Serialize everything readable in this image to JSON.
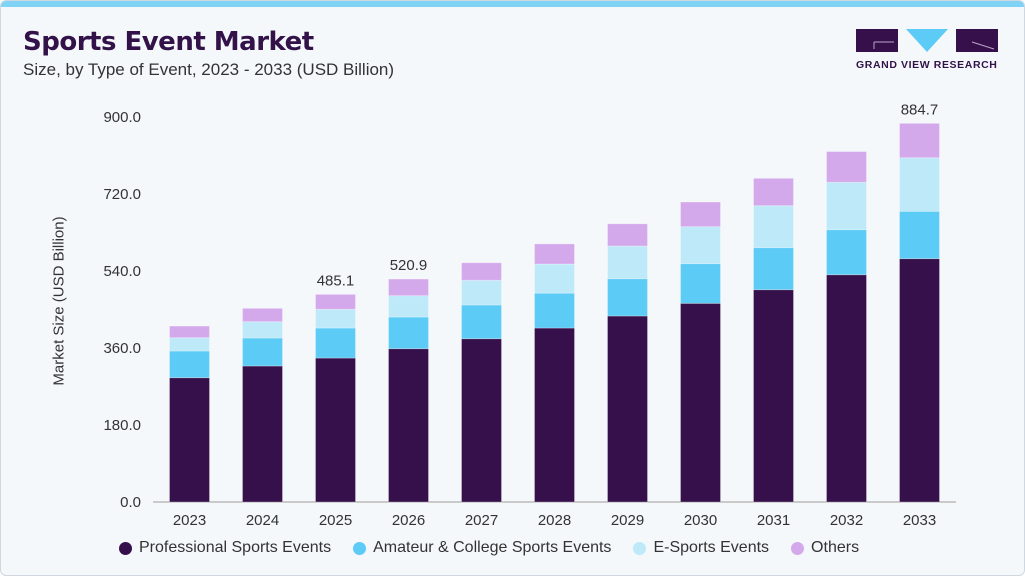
{
  "header": {
    "title": "Sports Event Market",
    "subtitle": "Size, by Type of Event, 2023 - 2033 (USD Billion)"
  },
  "logo": {
    "text": "GRAND VIEW RESEARCH"
  },
  "chart_data": {
    "type": "bar",
    "stacked": true,
    "ylabel": "Market Size (USD Billion)",
    "xlabel": "",
    "ylim": [
      0,
      900
    ],
    "yticks": [
      "0.0",
      "180.0",
      "360.0",
      "540.0",
      "720.0",
      "900.0"
    ],
    "grid": false,
    "legend_position": "bottom",
    "categories": [
      "2023",
      "2024",
      "2025",
      "2026",
      "2027",
      "2028",
      "2029",
      "2030",
      "2031",
      "2032",
      "2033"
    ],
    "series": [
      {
        "name": "Professional Sports Events",
        "color": "#36104a",
        "values": [
          290.4,
          317.8,
          336.4,
          358.2,
          381.5,
          406.5,
          434.6,
          464.2,
          496.0,
          531.0,
          568.5
        ]
      },
      {
        "name": "Amateur & College Sports Events",
        "color": "#5ccbf5",
        "values": [
          62.4,
          65.4,
          70.1,
          74.0,
          78.8,
          81.5,
          87.1,
          92.6,
          98.2,
          105.2,
          110.7
        ]
      },
      {
        "name": "E-Sports Events",
        "color": "#bde9f9",
        "values": [
          31.1,
          38.1,
          43.7,
          49.8,
          57.7,
          68.0,
          76.3,
          86.4,
          98.1,
          110.8,
          125.2
        ]
      },
      {
        "name": "Others",
        "color": "#d4a9ec",
        "values": [
          27.2,
          31.2,
          34.9,
          38.9,
          41.0,
          47.0,
          52.0,
          57.8,
          64.0,
          71.8,
          80.3
        ]
      }
    ],
    "data_labels": {
      "2025": "485.1",
      "2026": "520.9",
      "2033": "884.7"
    }
  }
}
